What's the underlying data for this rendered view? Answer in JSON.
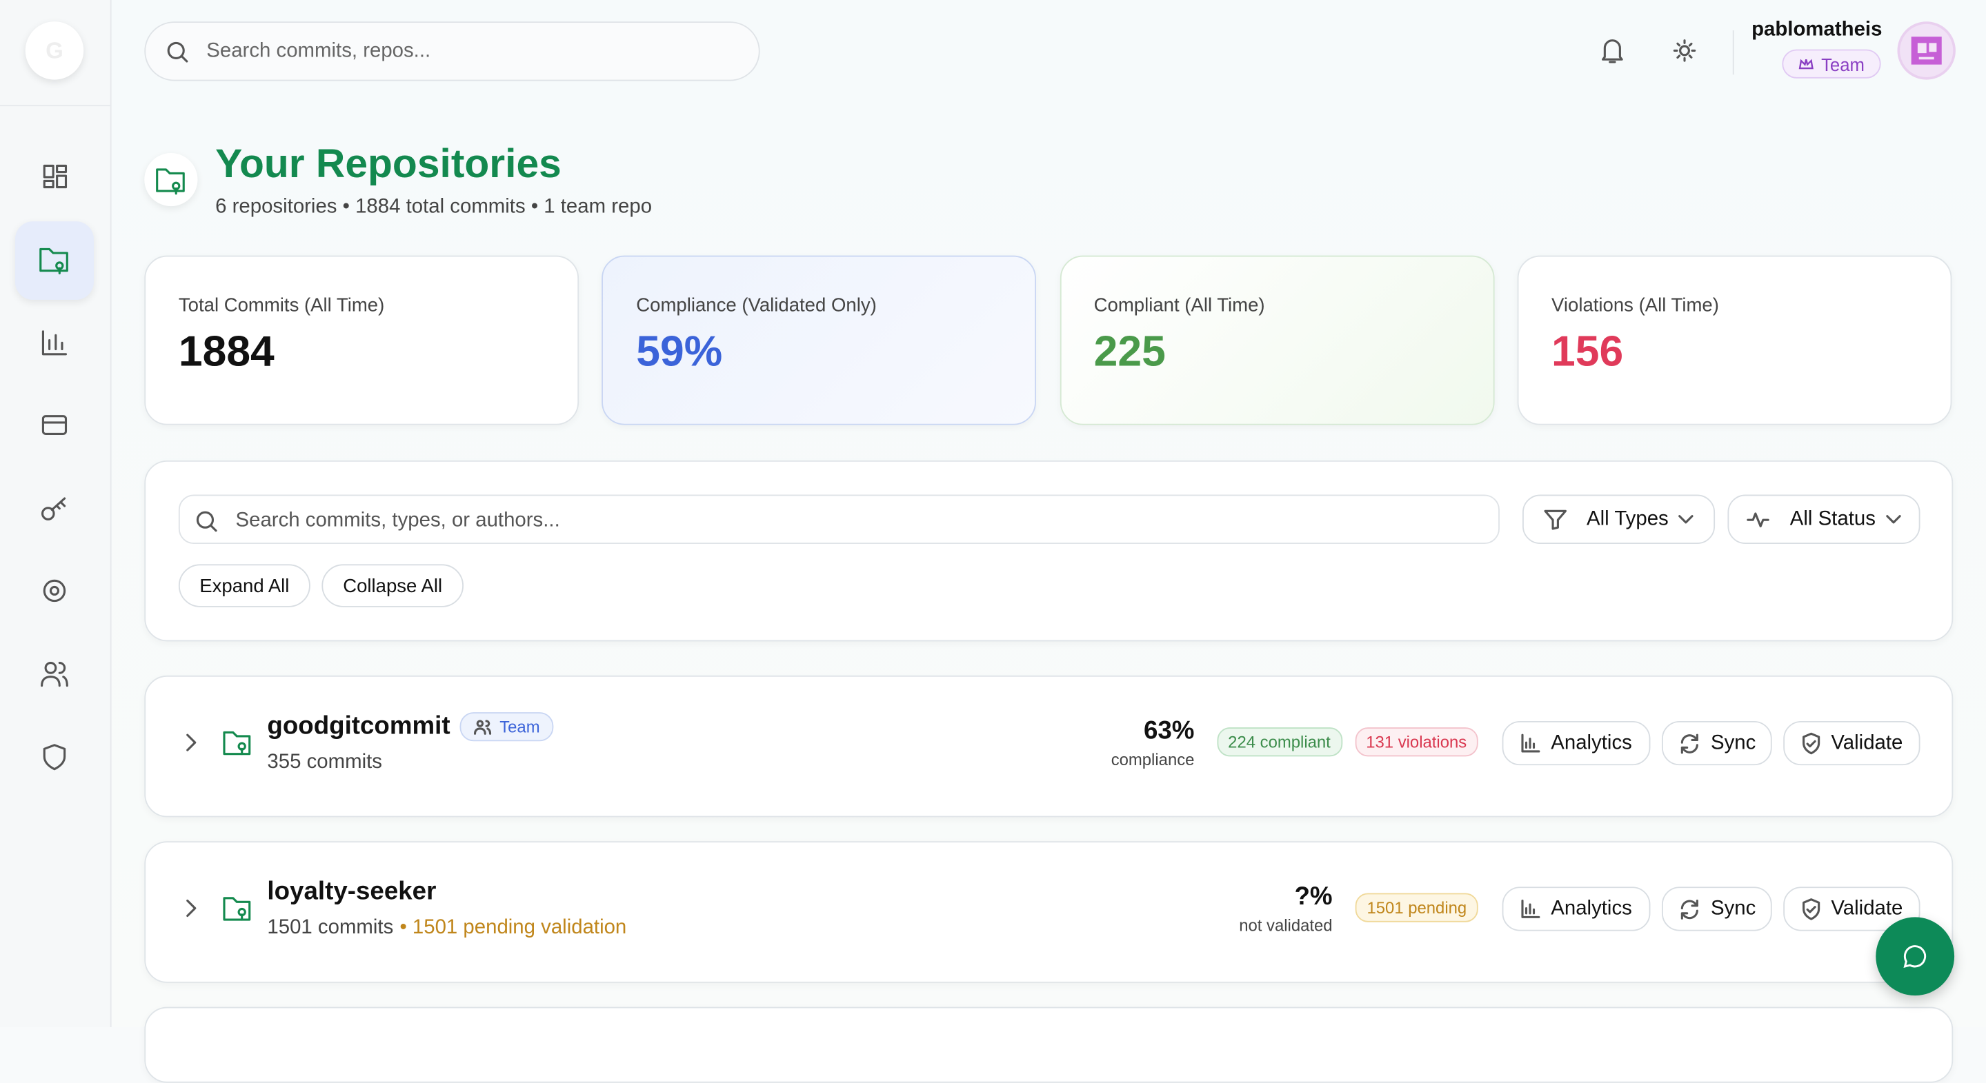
{
  "sidebar": {
    "logo": "G"
  },
  "header": {
    "search_placeholder": "Search commits, repos...",
    "user_name": "pablomatheis",
    "plan_badge": "Team"
  },
  "page": {
    "title": "Your Repositories",
    "subtitle": "6 repositories • 1884 total commits • 1 team repo"
  },
  "stats": [
    {
      "label": "Total Commits (All Time)",
      "value": "1884"
    },
    {
      "label": "Compliance (Validated Only)",
      "value": "59%"
    },
    {
      "label": "Compliant (All Time)",
      "value": "225"
    },
    {
      "label": "Violations (All Time)",
      "value": "156"
    }
  ],
  "filters": {
    "search_placeholder": "Search commits, types, or authors...",
    "type_select": "All Types",
    "status_select": "All Status",
    "expand_all": "Expand All",
    "collapse_all": "Collapse All"
  },
  "repos": [
    {
      "name": "goodgitcommit",
      "badge": "Team",
      "commits": "355 commits",
      "pending": null,
      "percent": "63%",
      "percent_label": "compliance",
      "chips": [
        {
          "text": "224 compliant",
          "kind": "ok"
        },
        {
          "text": "131 violations",
          "kind": "bad"
        }
      ],
      "actions": [
        "Analytics",
        "Sync",
        "Validate"
      ]
    },
    {
      "name": "loyalty-seeker",
      "badge": null,
      "commits": "1501 commits",
      "pending": "• 1501 pending validation",
      "percent": "?%",
      "percent_label": "not validated",
      "chips": [
        {
          "text": "1501 pending",
          "kind": "pend"
        }
      ],
      "actions": [
        "Analytics",
        "Sync",
        "Validate"
      ]
    }
  ]
}
